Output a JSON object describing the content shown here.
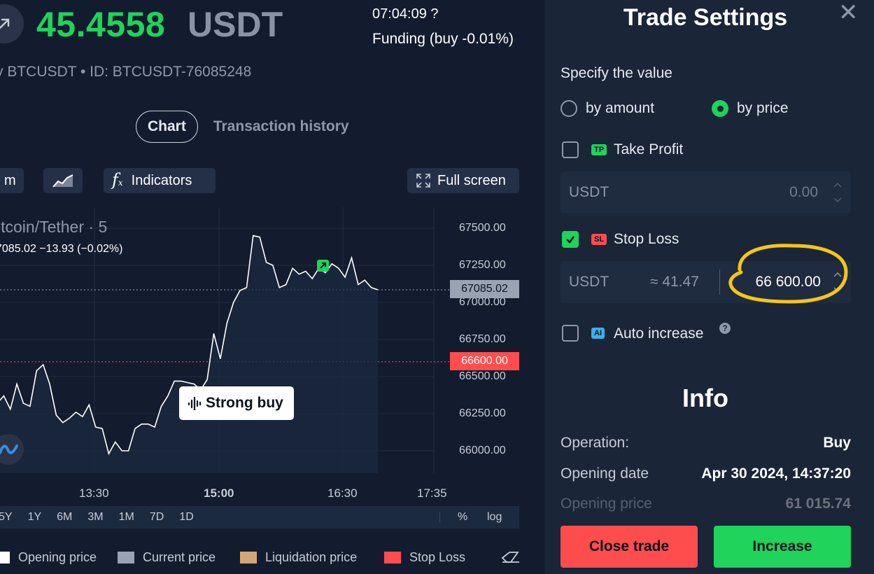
{
  "header": {
    "pnl_value": "45.4558",
    "pnl_currency": "USDT",
    "timer": "07:04:09 ?",
    "funding": "Funding (buy -0.01%)",
    "trade_id": "y BTCUSDT • ID: BTCUSDT-76085248"
  },
  "tabs": [
    {
      "label": "Chart",
      "active": true
    },
    {
      "label": "Transaction history",
      "active": false
    }
  ],
  "toolbar": {
    "timeframe_label": "m",
    "indicators_label": "Indicators",
    "fullscreen_label": "Full screen"
  },
  "chart": {
    "title": "itcoin/Tether · 5",
    "ohlc": "7085.02  −13.93 (−0.02%)",
    "current_price_tag": "67085.02",
    "stop_loss_tag": "66600.00",
    "signal_label": "Strong buy"
  },
  "chart_data": {
    "type": "line",
    "title": "itcoin/Tether · 5",
    "xlabel": "",
    "ylabel": "",
    "x_ticks": [
      "13:30",
      "15:00",
      "16:30",
      "17:35"
    ],
    "y_ticks": [
      "67500.00",
      "67250.00",
      "67000.00",
      "66750.00",
      "66500.00",
      "66250.00",
      "66000.00"
    ],
    "ylim": [
      65920,
      67620
    ],
    "grid": true,
    "series": [
      {
        "name": "",
        "values": [
          66320,
          66370,
          66280,
          66450,
          66320,
          66300,
          66540,
          66580,
          66450,
          66240,
          66190,
          66220,
          66260,
          66230,
          66310,
          66160,
          66150,
          65980,
          66060,
          66000,
          66000,
          66150,
          66180,
          66180,
          66160,
          66300,
          66370,
          66470,
          66470,
          66460,
          66450,
          66410,
          66480,
          66790,
          66620,
          66860,
          67000,
          67080,
          67100,
          67450,
          67440,
          67270,
          67250,
          67100,
          67120,
          67230,
          67190,
          67210,
          67160,
          67230,
          67200,
          67260,
          67230,
          67170,
          67300,
          67120,
          67150,
          67100,
          67085
        ]
      }
    ],
    "reference_lines": [
      {
        "name": "Current price",
        "value": 67085.02,
        "color": "#9aa3b4"
      },
      {
        "name": "Stop Loss",
        "value": 66600.0,
        "color": "#ff4d4d"
      }
    ]
  },
  "periods": [
    "5Y",
    "1Y",
    "6M",
    "3M",
    "1M",
    "7D",
    "1D"
  ],
  "period_right": [
    "%",
    "log"
  ],
  "legend": [
    {
      "label": "Opening price",
      "color": "#ffffff"
    },
    {
      "label": "Current price",
      "color": "#9aa3b4"
    },
    {
      "label": "Liquidation price",
      "color": "#d4a574"
    },
    {
      "label": "Stop Loss",
      "color": "#ff4d4d"
    }
  ],
  "settings": {
    "title": "Trade Settings",
    "specify_label": "Specify the value",
    "by_amount": "by amount",
    "by_price": "by price",
    "take_profit": {
      "badge": "TP",
      "label": "Take Profit",
      "currency": "USDT",
      "value": "0.00",
      "checked": false
    },
    "stop_loss": {
      "badge": "SL",
      "label": "Stop Loss",
      "currency": "USDT",
      "approx": "≈ 41.47",
      "value": "66 600.00",
      "checked": true
    },
    "auto_increase": {
      "badge": "AI",
      "label": "Auto increase",
      "help": "?",
      "checked": false
    }
  },
  "info": {
    "title": "Info",
    "rows": [
      {
        "key": "Operation:",
        "value": "Buy"
      },
      {
        "key": "Opening date",
        "value": "Apr 30 2024, 14:37:20"
      },
      {
        "key": "Opening price",
        "value": "61 015.74"
      }
    ]
  },
  "actions": {
    "close_label": "Close trade",
    "increase_label": "Increase"
  },
  "colors": {
    "profit_green": "#1fd35b",
    "loss_red": "#ff4d4d",
    "highlight_yellow": "#f5c518"
  }
}
